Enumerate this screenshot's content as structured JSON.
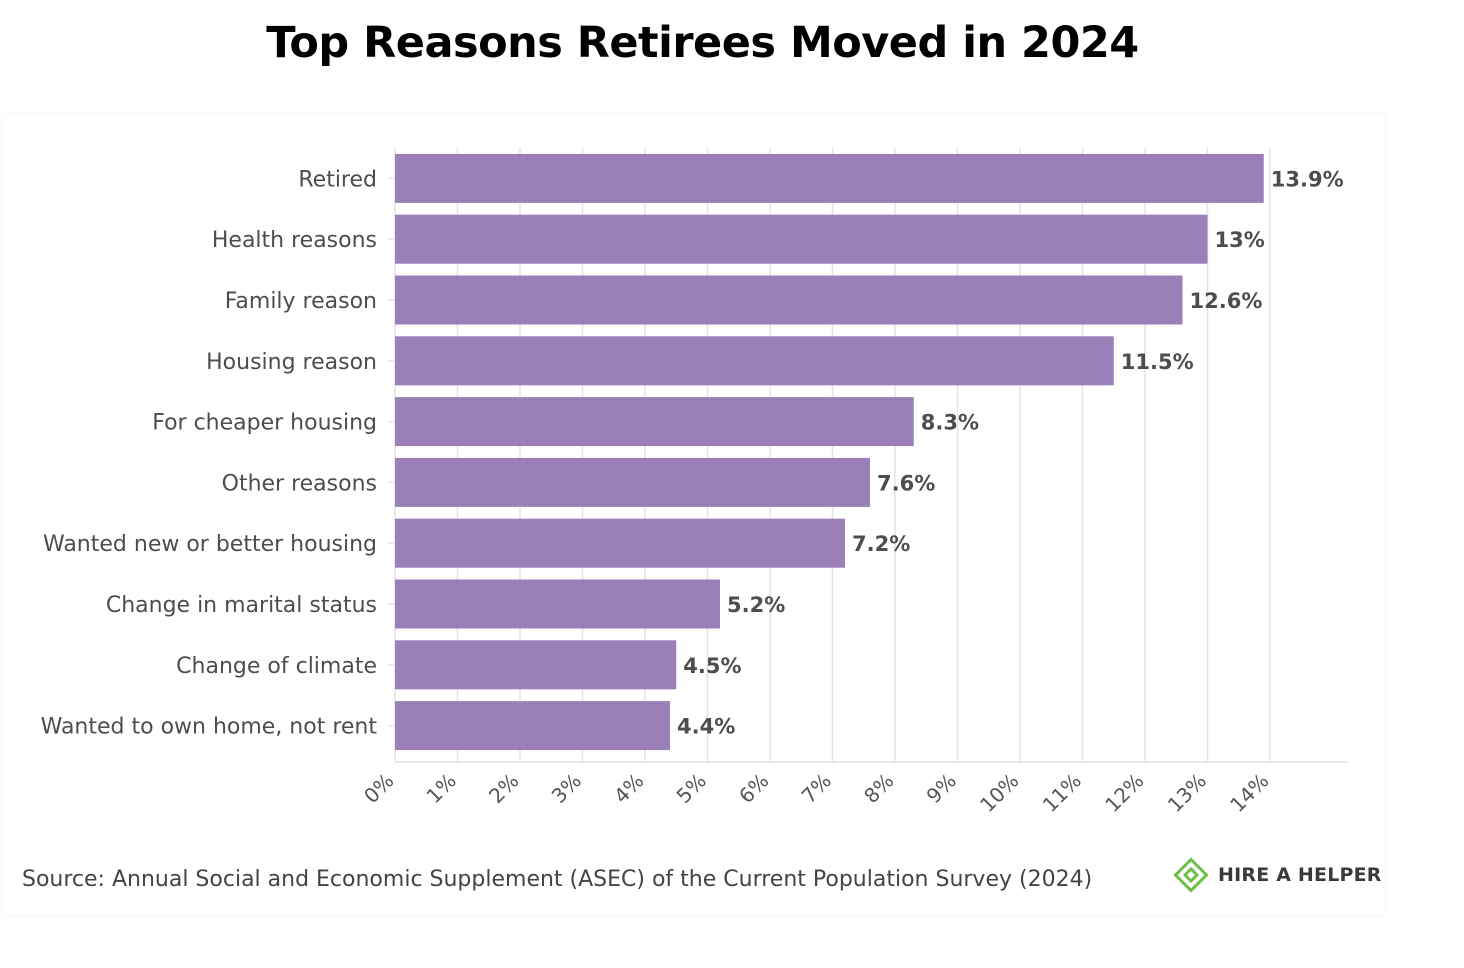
{
  "chart_data": {
    "type": "bar",
    "orientation": "horizontal",
    "title": "Top Reasons Retirees Moved in 2024",
    "categories": [
      "Retired",
      "Health reasons",
      "Family reason",
      "Housing reason",
      "For cheaper housing",
      "Other reasons",
      "Wanted new or better housing",
      "Change in marital status",
      "Change of climate",
      "Wanted to own home, not rent"
    ],
    "values": [
      13.9,
      13,
      12.6,
      11.5,
      8.3,
      7.6,
      7.2,
      5.2,
      4.5,
      4.4
    ],
    "value_labels": [
      "13.9%",
      "13%",
      "12.6%",
      "11.5%",
      "8.3%",
      "7.6%",
      "7.2%",
      "5.2%",
      "4.5%",
      "4.4%"
    ],
    "xlim": [
      0,
      14
    ],
    "x_ticks": [
      0,
      1,
      2,
      3,
      4,
      5,
      6,
      7,
      8,
      9,
      10,
      11,
      12,
      13,
      14
    ],
    "x_tick_labels": [
      "0%",
      "1%",
      "2%",
      "3%",
      "4%",
      "5%",
      "6%",
      "7%",
      "8%",
      "9%",
      "10%",
      "11%",
      "12%",
      "13%",
      "14%"
    ],
    "xlabel": "",
    "ylabel": "",
    "grid": "vertical",
    "legend": "none",
    "bar_color": "#9a7fb8"
  },
  "source": "Source: Annual Social and Economic Supplement (ASEC) of the Current Population Survey (2024)",
  "brand": {
    "name": "HIRE A HELPER",
    "icon": "hireahelper-logo-icon",
    "color": "#6cc04a"
  }
}
